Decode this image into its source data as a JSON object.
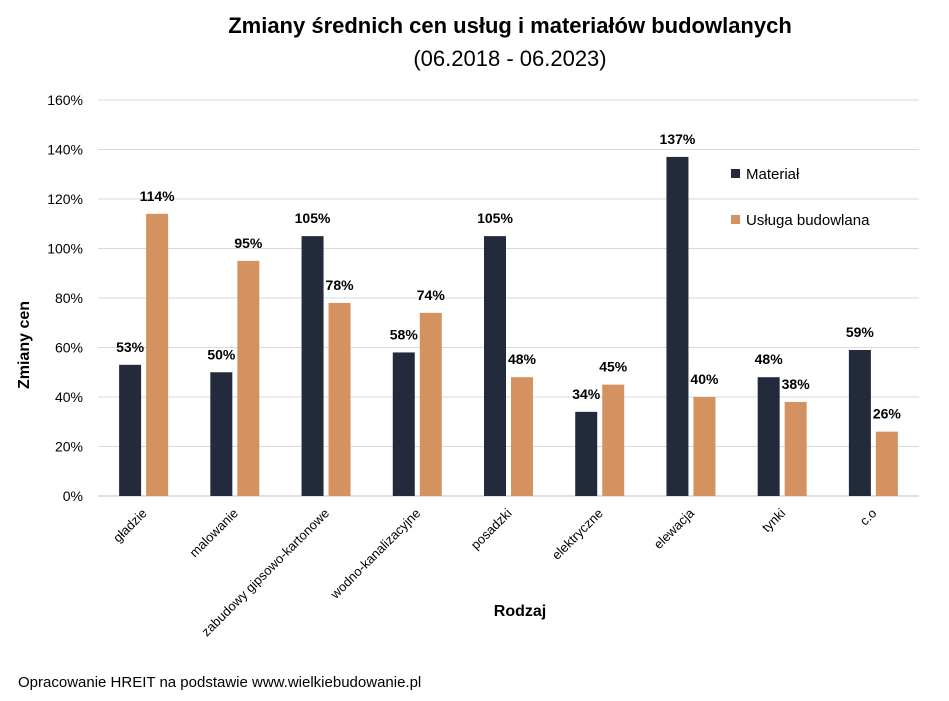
{
  "chart_data": {
    "type": "bar",
    "title": "Zmiany średnich cen usług i materiałów budowlanych",
    "subtitle": "(06.2018 - 06.2023)",
    "xlabel": "Rodzaj",
    "ylabel": "Zmiany cen",
    "ylim": [
      0,
      160
    ],
    "yticks": [
      "0%",
      "20%",
      "40%",
      "60%",
      "80%",
      "100%",
      "120%",
      "140%",
      "160%"
    ],
    "grid": true,
    "legend_position": "right",
    "categories": [
      "gładzie",
      "malowanie",
      "zabudowy gipsowo-kartonowe",
      "wodno-kanalizacyjne",
      "posadzki",
      "elektryczne",
      "elewacja",
      "tynki",
      "c.o"
    ],
    "series": [
      {
        "name": "Materiał",
        "color": "#232a3c",
        "values": [
          53,
          50,
          105,
          58,
          105,
          34,
          137,
          48,
          59
        ],
        "labels": [
          "53%",
          "50%",
          "105%",
          "58%",
          "105%",
          "34%",
          "137%",
          "48%",
          "59%"
        ]
      },
      {
        "name": "Usługa budowlana",
        "color": "#d59261",
        "values": [
          114,
          95,
          78,
          74,
          48,
          45,
          40,
          38,
          26
        ],
        "labels": [
          "114%",
          "95%",
          "78%",
          "74%",
          "48%",
          "45%",
          "40%",
          "38%",
          "26%"
        ]
      }
    ]
  },
  "source_note": "Opracowanie HREIT na podstawie www.wielkiebudowanie.pl"
}
